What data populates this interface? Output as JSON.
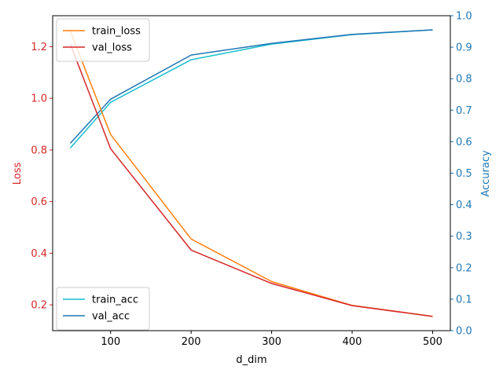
{
  "chart_data": {
    "type": "line",
    "x": [
      50,
      100,
      200,
      300,
      400,
      500
    ],
    "xlabel": "d_dim",
    "xticks": [
      "100",
      "200",
      "300",
      "400",
      "500"
    ],
    "xlim": [
      28,
      522
    ],
    "left_axis": {
      "label": "Loss",
      "color": "#d62728",
      "ylim": [
        0.1,
        1.32
      ],
      "ticks": [
        "0.2",
        "0.4",
        "0.6",
        "0.8",
        "1.0",
        "1.2"
      ],
      "series": [
        {
          "name": "train_loss",
          "color": "#ff7f0e",
          "values": [
            1.26,
            0.86,
            0.455,
            0.29,
            0.198,
            0.155
          ]
        },
        {
          "name": "val_loss",
          "color": "#d62728",
          "values": [
            1.21,
            0.805,
            0.412,
            0.283,
            0.197,
            0.155
          ]
        }
      ],
      "legend_position": "upper-left"
    },
    "right_axis": {
      "label": "Accuracy",
      "color": "#1f77b4",
      "ylim": [
        0.0,
        1.0
      ],
      "ticks": [
        "0.0",
        "0.1",
        "0.2",
        "0.3",
        "0.4",
        "0.5",
        "0.6",
        "0.7",
        "0.8",
        "0.9",
        "1.0"
      ],
      "series": [
        {
          "name": "train_acc",
          "color": "#17becf",
          "values": [
            0.58,
            0.725,
            0.86,
            0.91,
            0.94,
            0.955
          ]
        },
        {
          "name": "val_acc",
          "color": "#1f77b4",
          "values": [
            0.595,
            0.735,
            0.875,
            0.912,
            0.941,
            0.955
          ]
        }
      ],
      "legend_position": "lower-left"
    },
    "grid": false
  }
}
